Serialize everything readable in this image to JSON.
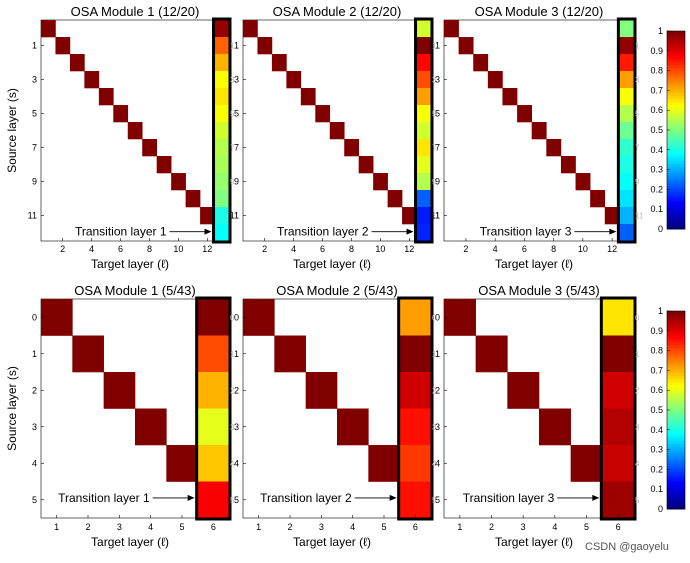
{
  "chart_data": [
    {
      "type": "heatmap",
      "title": "OSA Module 1 (12/20)",
      "xlabel": "Target layer (ℓ)",
      "ylabel": "Source layer (s)",
      "x_ticks": [
        "2",
        "4",
        "6",
        "8",
        "10",
        "12"
      ],
      "y_ticks": [
        "1",
        "3",
        "5",
        "7",
        "9",
        "11"
      ],
      "grid_size": 13,
      "diagonal_value": 1.0,
      "transition_values": [
        0.98,
        0.78,
        0.7,
        0.62,
        0.65,
        0.62,
        0.58,
        0.55,
        0.54,
        0.52,
        0.5,
        0.4,
        0.38
      ],
      "annotation": "Transition layer 1"
    },
    {
      "type": "heatmap",
      "title": "OSA Module 2 (12/20)",
      "xlabel": "Target layer (ℓ)",
      "ylabel": "Source layer (s)",
      "x_ticks": [
        "2",
        "4",
        "6",
        "8",
        "10",
        "12"
      ],
      "y_ticks": [
        "1",
        "3",
        "5",
        "7",
        "9",
        "11"
      ],
      "grid_size": 13,
      "diagonal_value": 1.0,
      "transition_values": [
        0.58,
        1.0,
        0.87,
        0.8,
        0.72,
        0.62,
        0.58,
        0.65,
        0.6,
        0.55,
        0.22,
        0.15,
        0.16
      ],
      "annotation": "Transition layer 2"
    },
    {
      "type": "heatmap",
      "title": "OSA Module 3 (12/20)",
      "xlabel": "Target layer (ℓ)",
      "ylabel": "Source layer (s)",
      "x_ticks": [
        "2",
        "4",
        "6",
        "8",
        "10",
        "12"
      ],
      "y_ticks": [
        "1",
        "3",
        "5",
        "7",
        "9",
        "11"
      ],
      "grid_size": 13,
      "diagonal_value": 1.0,
      "transition_values": [
        0.5,
        0.98,
        0.85,
        0.72,
        0.62,
        0.55,
        0.48,
        0.42,
        0.4,
        0.38,
        0.35,
        0.3,
        0.22
      ],
      "annotation": "Transition layer 3"
    },
    {
      "type": "heatmap",
      "title": "OSA Module 1 (5/43)",
      "xlabel": "Target layer (ℓ)",
      "ylabel": "Source layer (s)",
      "x_ticks": [
        "1",
        "2",
        "3",
        "4",
        "5",
        "6"
      ],
      "y_ticks": [
        "0",
        "1",
        "2",
        "3",
        "4",
        "5"
      ],
      "grid_size": 6,
      "diagonal_value": 1.0,
      "transition_values": [
        1.0,
        0.8,
        0.7,
        0.6,
        0.68,
        0.88
      ],
      "annotation": "Transition layer 1"
    },
    {
      "type": "heatmap",
      "title": "OSA Module 2 (5/43)",
      "xlabel": "Target layer (ℓ)",
      "ylabel": "Source layer (s)",
      "x_ticks": [
        "1",
        "2",
        "3",
        "4",
        "5",
        "6"
      ],
      "y_ticks": [
        "0",
        "1",
        "2",
        "3",
        "4",
        "5"
      ],
      "grid_size": 6,
      "diagonal_value": 1.0,
      "transition_values": [
        0.72,
        1.0,
        0.92,
        0.86,
        0.82,
        0.86
      ],
      "annotation": "Transition layer 2"
    },
    {
      "type": "heatmap",
      "title": "OSA Module 3 (5/43)",
      "xlabel": "Target layer (ℓ)",
      "ylabel": "Source layer (s)",
      "x_ticks": [
        "1",
        "2",
        "3",
        "4",
        "5",
        "6"
      ],
      "y_ticks": [
        "0",
        "1",
        "2",
        "3",
        "4",
        "5"
      ],
      "grid_size": 6,
      "diagonal_value": 1.0,
      "transition_values": [
        0.65,
        1.0,
        0.92,
        0.95,
        0.93,
        0.97
      ],
      "annotation": "Transition layer 3"
    }
  ],
  "colorbars": [
    {
      "ticks": [
        "0",
        "0.1",
        "0.2",
        "0.3",
        "0.4",
        "0.5",
        "0.6",
        "0.7",
        "0.8",
        "0.9",
        "1"
      ],
      "range": [
        0,
        1
      ]
    },
    {
      "ticks": [
        "0",
        "0.1",
        "0.2",
        "0.3",
        "0.4",
        "0.5",
        "0.6",
        "0.7",
        "0.8",
        "0.9",
        "1"
      ],
      "range": [
        0,
        1
      ]
    }
  ],
  "watermark": "CSDN @gaoyelu"
}
